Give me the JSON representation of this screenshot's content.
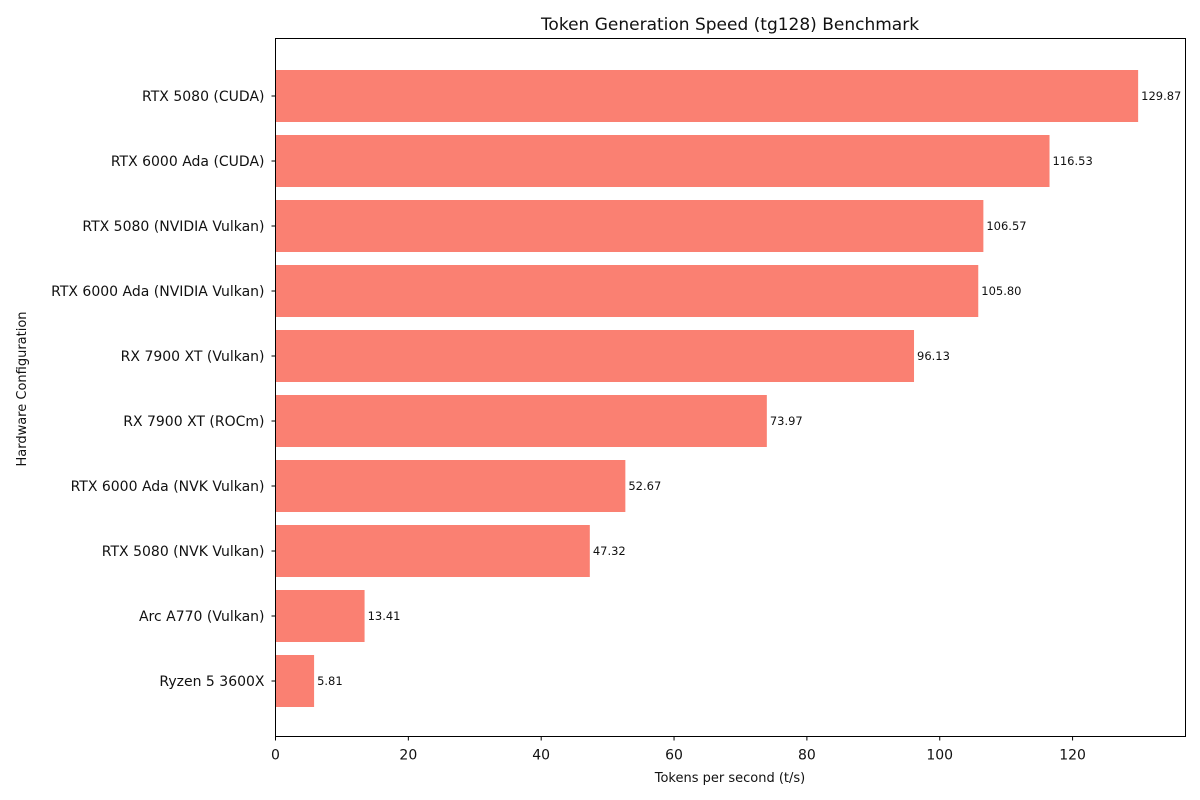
{
  "chart_data": {
    "type": "bar",
    "orientation": "horizontal",
    "title": "Token Generation Speed (tg128) Benchmark",
    "xlabel": "Tokens per second (t/s)",
    "ylabel": "Hardware Configuration",
    "xlim": [
      0,
      137
    ],
    "xticks": [
      0,
      20,
      40,
      60,
      80,
      100,
      120
    ],
    "grid": false,
    "bar_color": "#fa8072",
    "categories": [
      "RTX 5080 (CUDA)",
      "RTX 6000 Ada (CUDA)",
      "RTX 5080 (NVIDIA Vulkan)",
      "RTX 6000 Ada (NVIDIA Vulkan)",
      "RX 7900 XT (Vulkan)",
      "RX 7900 XT (ROCm)",
      "RTX 6000 Ada (NVK Vulkan)",
      "RTX 5080 (NVK Vulkan)",
      "Arc A770 (Vulkan)",
      "Ryzen 5 3600X"
    ],
    "values": [
      129.87,
      116.53,
      106.57,
      105.8,
      96.13,
      73.97,
      52.67,
      47.32,
      13.41,
      5.81
    ],
    "value_labels": [
      "129.87",
      "116.53",
      "106.57",
      "105.80",
      "96.13",
      "73.97",
      "52.67",
      "47.32",
      "13.41",
      "5.81"
    ]
  }
}
